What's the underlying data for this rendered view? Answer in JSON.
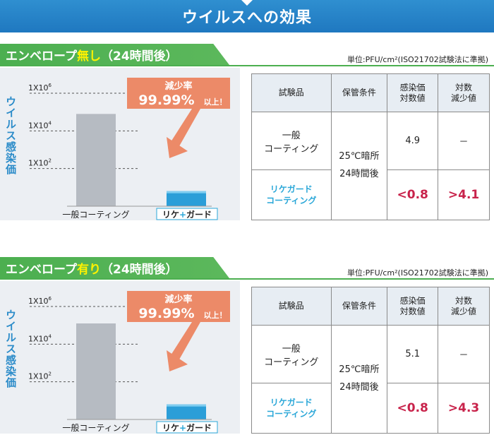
{
  "header": {
    "title": "ウイルスへの効果"
  },
  "sections": [
    {
      "title_pre": "エンベロープ",
      "title_hl": "無し",
      "title_post": "（24時間後）",
      "unit_note": "単位:PFU/cm²(ISO21702試験法に準拠)",
      "ylabel": "ウイルス感染価",
      "callout": {
        "heading": "減少率",
        "percent": "99.99%",
        "suffix": "以上！"
      },
      "table": {
        "headers": [
          "試験品",
          "保管条件",
          "感染価\n対数値",
          "対数\n減少値"
        ],
        "storage": "25℃暗所\n24時間後",
        "rows": [
          {
            "name": "一般\nコーティング",
            "value": "4.9",
            "reduction": "－"
          },
          {
            "name": "リケガード\nコーティング",
            "value": "<0.8",
            "reduction": ">4.1"
          }
        ]
      },
      "chart_data": {
        "type": "bar",
        "categories": [
          "一般コーティング",
          "リケ+ガード"
        ],
        "values": [
          4.9,
          0.8
        ],
        "yscale": "log10",
        "ylim": [
          0,
          6.6
        ],
        "yticks": [
          {
            "base": "1X10",
            "exp": "6",
            "value": 6
          },
          {
            "base": "1X10",
            "exp": "4",
            "value": 4
          },
          {
            "base": "1X10",
            "exp": "2",
            "value": 2
          }
        ],
        "colors": [
          "#b6bbc2",
          "#2b9ed8"
        ],
        "ylabel": "ウイルス感染価"
      }
    },
    {
      "title_pre": "エンベロープ",
      "title_hl": "有り",
      "title_post": "（24時間後）",
      "unit_note": "単位:PFU/cm²(ISO21702試験法に準拠)",
      "ylabel": "ウイルス感染価",
      "callout": {
        "heading": "減少率",
        "percent": "99.99%",
        "suffix": "以上！"
      },
      "table": {
        "headers": [
          "試験品",
          "保管条件",
          "感染価\n対数値",
          "対数\n減少値"
        ],
        "storage": "25℃暗所\n24時間後",
        "rows": [
          {
            "name": "一般\nコーティング",
            "value": "5.1",
            "reduction": "－"
          },
          {
            "name": "リケガード\nコーティング",
            "value": "<0.8",
            "reduction": ">4.3"
          }
        ]
      },
      "chart_data": {
        "type": "bar",
        "categories": [
          "一般コーティング",
          "リケ+ガード"
        ],
        "values": [
          5.1,
          0.8
        ],
        "yscale": "log10",
        "ylim": [
          0,
          6.6
        ],
        "yticks": [
          {
            "base": "1X10",
            "exp": "6",
            "value": 6
          },
          {
            "base": "1X10",
            "exp": "4",
            "value": 4
          },
          {
            "base": "1X10",
            "exp": "2",
            "value": 2
          }
        ],
        "colors": [
          "#b6bbc2",
          "#2b9ed8"
        ],
        "ylabel": "ウイルス感染価"
      }
    }
  ]
}
